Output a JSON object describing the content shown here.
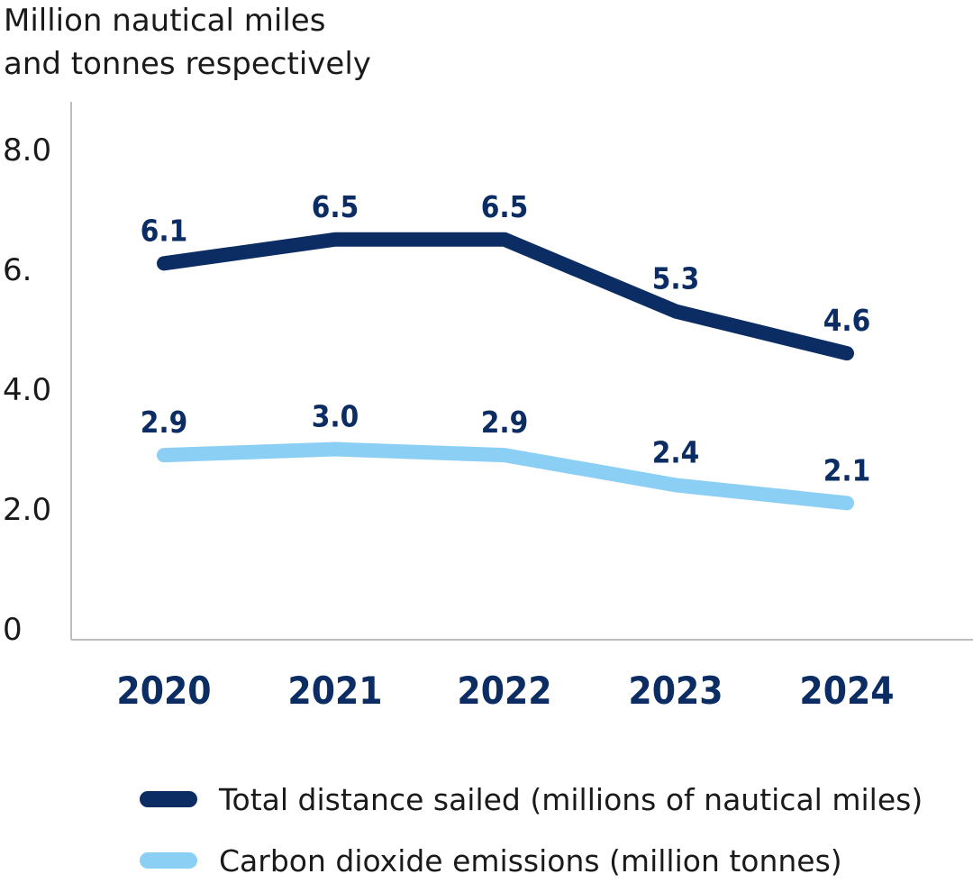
{
  "chart_data": {
    "type": "line",
    "title": "",
    "ylabel_line1": "Million nautical miles",
    "ylabel_line2": "and tonnes respectively",
    "categories": [
      "2020",
      "2021",
      "2022",
      "2023",
      "2024"
    ],
    "y_ticks": [
      {
        "value": 0,
        "label": "0"
      },
      {
        "value": 2,
        "label": "2.0"
      },
      {
        "value": 4,
        "label": "4.0"
      },
      {
        "value": 6,
        "label": "6."
      },
      {
        "value": 8,
        "label": "8.0"
      }
    ],
    "ylim": [
      0,
      8.8
    ],
    "grid": false,
    "legend_position": "bottom",
    "series": [
      {
        "name": "Total distance sailed (millions of nautical miles)",
        "color": "#0b2d63",
        "values": [
          6.1,
          6.5,
          6.5,
          5.3,
          4.6
        ],
        "labels": [
          "6.1",
          "6.5",
          "6.5",
          "5.3",
          "4.6"
        ]
      },
      {
        "name": "Carbon dioxide emissions (million tonnes)",
        "color": "#8ccff5",
        "values": [
          2.9,
          3.0,
          2.9,
          2.4,
          2.1
        ],
        "labels": [
          "2.9",
          "3.0",
          "2.9",
          "2.4",
          "2.1"
        ]
      }
    ],
    "axis_color": "#bdbdbd"
  }
}
